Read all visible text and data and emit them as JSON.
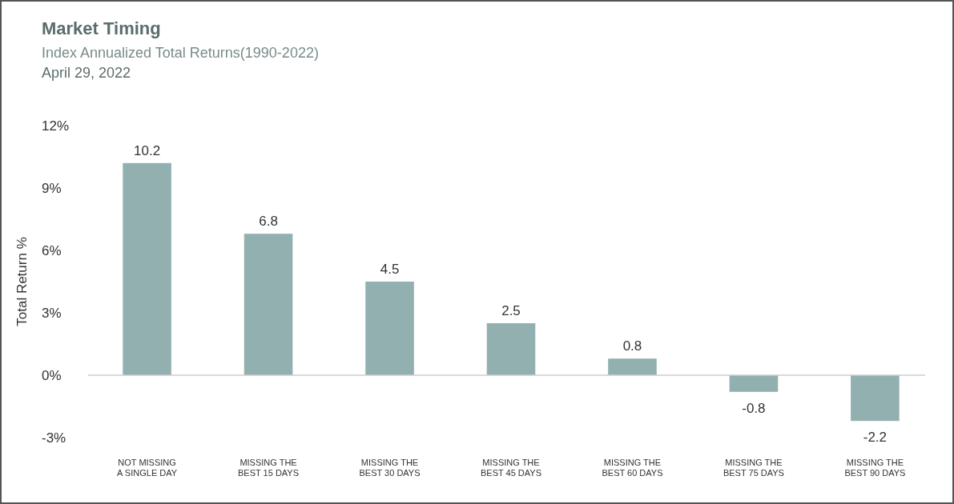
{
  "chart_data": {
    "type": "bar",
    "title": "Market Timing",
    "subtitle": "Index Annualized Total Returns(1990-2022)",
    "annotations": [
      "April 29, 2022"
    ],
    "ylabel": "Total Return %",
    "categories": [
      "NOT MISSING\nA SINGLE DAY",
      "MISSING THE\nBEST 15 DAYS",
      "MISSING THE\nBEST 30 DAYS",
      "MISSING THE\nBEST 45 DAYS",
      "MISSING THE\nBEST 60 DAYS",
      "MISSING THE\nBEST 75 DAYS",
      "MISSING THE\nBEST 90 DAYS"
    ],
    "values": [
      10.2,
      6.8,
      4.5,
      2.5,
      0.8,
      -0.8,
      -2.2
    ],
    "color": "#93b0b1",
    "data_labels": true,
    "ylim": [
      -3,
      12
    ],
    "yticks": [
      {
        "value": -3,
        "label": "-3%"
      },
      {
        "value": 0,
        "label": "0%"
      },
      {
        "value": 3,
        "label": "3%"
      },
      {
        "value": 6,
        "label": "6%"
      },
      {
        "value": 9,
        "label": "9%"
      },
      {
        "value": 12,
        "label": "12%"
      }
    ]
  }
}
